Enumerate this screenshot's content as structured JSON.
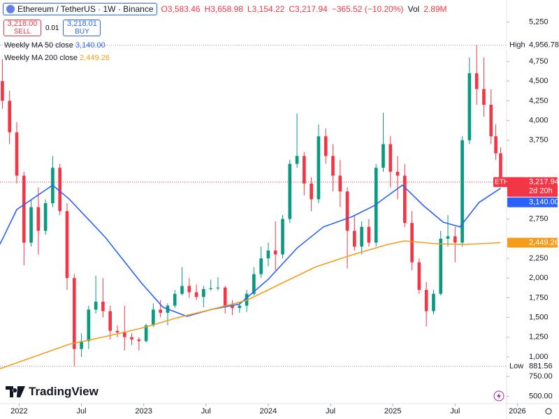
{
  "header": {
    "ohlc": [
      "O3,583.46",
      "H3,658.98",
      "L3,154.22",
      "C3,217.94"
    ],
    "change": "−365.52 (−10.20%)",
    "volume_label": "Vol",
    "volume": "2.89M"
  },
  "trade": {
    "sell_price": "3,218.00",
    "sell_label": "SELL",
    "spread": "0.01",
    "buy_price": "3,218.01",
    "buy_label": "BUY"
  },
  "brand": "TradingView",
  "chart_data": {
    "type": "candlestick",
    "title": "Ethereum / TetherUS · 1W · Binance",
    "x": [
      -7,
      -4,
      -1,
      2,
      5,
      8,
      11,
      14,
      17,
      20,
      23,
      26,
      29,
      32,
      35,
      38,
      41,
      44,
      47,
      50,
      53,
      56,
      59,
      62,
      65,
      68,
      71,
      74,
      77,
      80,
      83,
      86,
      89,
      92,
      95,
      98,
      101,
      104,
      107,
      110,
      113,
      116,
      119,
      122,
      125,
      128,
      131,
      134,
      137,
      140,
      143,
      146,
      149,
      152,
      155,
      158,
      161,
      164,
      167,
      170,
      173,
      176,
      179,
      182,
      185,
      188,
      191,
      194,
      197,
      199,
      201
    ],
    "open": [
      4500,
      4250,
      3850,
      3300,
      2450,
      2900,
      2600,
      2950,
      3400,
      2850,
      2000,
      1100,
      1200,
      1600,
      1700,
      1580,
      1330,
      1310,
      1250,
      1220,
      1200,
      1400,
      1600,
      1560,
      1650,
      1800,
      1900,
      1820,
      1760,
      1860,
      1870,
      1880,
      1650,
      1620,
      1650,
      1800,
      2050,
      2250,
      2350,
      2300,
      2750,
      3450,
      3550,
      3200,
      3000,
      3800,
      3550,
      3300,
      3100,
      2600,
      2400,
      2650,
      2450,
      3400,
      3700,
      3350,
      3300,
      2700,
      2200,
      1850,
      1580,
      1800,
      2500,
      2530,
      2450,
      3750,
      4600,
      4400,
      4200,
      3800,
      3583.46
    ],
    "high": [
      4780,
      4380,
      3980,
      3350,
      3000,
      3150,
      3000,
      3550,
      3450,
      2950,
      2050,
      1300,
      1650,
      2030,
      2000,
      1650,
      1400,
      1650,
      1300,
      1250,
      1420,
      1680,
      1720,
      1680,
      1850,
      2140,
      2000,
      1920,
      1900,
      1980,
      2010,
      1900,
      1720,
      1700,
      1850,
      2140,
      2400,
      2450,
      2720,
      2800,
      3500,
      4090,
      3600,
      3280,
      3950,
      3900,
      3700,
      3500,
      3150,
      2800,
      2720,
      2750,
      3450,
      4100,
      3800,
      3550,
      3450,
      2850,
      2250,
      1950,
      1850,
      2600,
      2800,
      2650,
      3800,
      4800,
      4956.78,
      4800,
      4400,
      3950,
      3658.98
    ],
    "low": [
      4150,
      3700,
      3200,
      2160,
      2400,
      2300,
      2550,
      2900,
      2800,
      1850,
      881.56,
      1000,
      1100,
      1550,
      1500,
      1220,
      1250,
      1080,
      1150,
      1080,
      1180,
      1380,
      1500,
      1400,
      1620,
      1780,
      1750,
      1720,
      1630,
      1840,
      1840,
      1550,
      1530,
      1560,
      1570,
      1780,
      2000,
      2150,
      2100,
      2250,
      2700,
      3400,
      3050,
      2850,
      2950,
      3450,
      3100,
      2900,
      2120,
      2350,
      2300,
      2400,
      2400,
      3350,
      3150,
      3000,
      2650,
      2100,
      1800,
      1385,
      1540,
      1780,
      2400,
      2200,
      2400,
      3700,
      4200,
      4050,
      3700,
      3500,
      3154.22
    ],
    "close": [
      4250,
      3850,
      3300,
      2450,
      2900,
      2600,
      2950,
      3400,
      2850,
      2000,
      1100,
      1200,
      1600,
      1700,
      1580,
      1330,
      1310,
      1250,
      1220,
      1200,
      1400,
      1600,
      1560,
      1650,
      1800,
      1900,
      1820,
      1760,
      1860,
      1870,
      1880,
      1650,
      1620,
      1650,
      1800,
      2050,
      2250,
      2350,
      2300,
      2750,
      3450,
      3550,
      3200,
      3000,
      3800,
      3550,
      3300,
      3100,
      2600,
      2400,
      2650,
      2450,
      3400,
      3700,
      3350,
      3300,
      2700,
      2200,
      1850,
      1580,
      1800,
      2500,
      2530,
      2450,
      3750,
      4600,
      4400,
      4200,
      3800,
      3583.46,
      3217.94
    ],
    "up_color": "#089981",
    "down_color": "#f23645",
    "xlim": [
      -8,
      203.5
    ],
    "xticks": [
      {
        "value": 0,
        "label": "2022"
      },
      {
        "value": 26,
        "label": "Jul"
      },
      {
        "value": 52,
        "label": "2023"
      },
      {
        "value": 78,
        "label": "Jul"
      },
      {
        "value": 104,
        "label": "2024"
      },
      {
        "value": 130,
        "label": "Jul"
      },
      {
        "value": 156,
        "label": "2025"
      },
      {
        "value": 182,
        "label": "Jul"
      },
      {
        "value": 208,
        "label": "2026"
      }
    ],
    "ylim": [
      406,
      5530
    ],
    "yticks": [
      {
        "value": 500,
        "label": "500.00"
      },
      {
        "value": 750,
        "label": "750.00"
      },
      {
        "value": 1000,
        "label": "1,000"
      },
      {
        "value": 1250,
        "label": "1,250"
      },
      {
        "value": 1500,
        "label": "1,500"
      },
      {
        "value": 1750,
        "label": "1,750"
      },
      {
        "value": 2000,
        "label": "2,000"
      },
      {
        "value": 2250,
        "label": "2,250"
      },
      {
        "value": 2750,
        "label": "2,750"
      },
      {
        "value": 3750,
        "label": "3,750"
      },
      {
        "value": 4000,
        "label": "4,000"
      },
      {
        "value": 4250,
        "label": "4,250"
      },
      {
        "value": 4500,
        "label": "4,500"
      },
      {
        "value": 4750,
        "label": "4,750"
      },
      {
        "value": 5250,
        "label": "5,250"
      }
    ],
    "series": [
      {
        "name": "Weekly MA 50 close",
        "color": "#2962ff",
        "value_label": "3,140.00",
        "x": [
          -8,
          -1,
          14,
          21,
          36,
          51,
          60,
          70,
          80,
          92,
          104,
          116,
          127,
          139,
          148,
          160,
          169,
          177,
          184,
          192,
          201
        ],
        "values": [
          2430,
          2870,
          3180,
          3000,
          2516,
          1940,
          1630,
          1514,
          1600,
          1670,
          1985,
          2380,
          2650,
          2780,
          2915,
          3180,
          2915,
          2710,
          2650,
          2960,
          3140
        ]
      },
      {
        "name": "Weekly MA 200 close",
        "color": "#f59c1a",
        "value_label": "2,449.26",
        "x": [
          -8,
          7,
          21,
          36,
          51,
          66,
          80,
          95,
          110,
          124,
          139,
          154,
          161,
          174,
          186,
          201
        ],
        "values": [
          849,
          1010,
          1160,
          1257,
          1363,
          1496,
          1600,
          1718,
          1940,
          2144,
          2294,
          2427,
          2472,
          2436,
          2427,
          2449.26
        ]
      }
    ],
    "high_marker": {
      "label": "High",
      "value": 4956.78,
      "value_label": "4,956.78"
    },
    "low_marker": {
      "label": "Low",
      "value": 881.56,
      "value_label": "881.56"
    },
    "last_price": {
      "symbol": "ETHUSDT",
      "value": 3217.94,
      "value_label": "3,217.94",
      "countdown": "2d 20h"
    },
    "grid": false
  }
}
